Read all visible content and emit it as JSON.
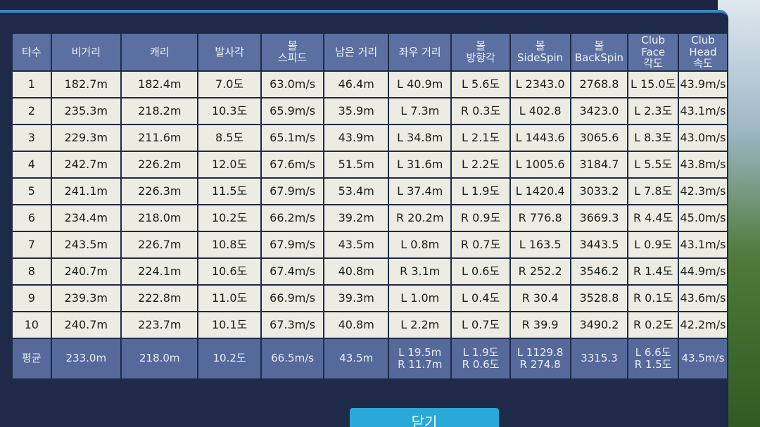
{
  "table": {
    "header": [
      "타수",
      "비거리",
      "캐리",
      "발사각",
      "볼\n스피드",
      "남은 거리",
      "좌우 거리",
      "볼\n방향각",
      "볼\nSideSpin",
      "볼\nBackSpin",
      "Club Face\n각도",
      "Club Head\n속도"
    ],
    "rows": [
      [
        "1",
        "182.7m",
        "182.4m",
        "7.0도",
        "63.0m/s",
        "46.4m",
        "L 40.9m",
        "L 5.6도",
        "L 2343.0",
        "2768.8",
        "L 15.0도",
        "43.9m/s"
      ],
      [
        "2",
        "235.3m",
        "218.2m",
        "10.3도",
        "65.9m/s",
        "35.9m",
        "L 7.3m",
        "R 0.3도",
        "L 402.8",
        "3423.0",
        "L 2.3도",
        "43.1m/s"
      ],
      [
        "3",
        "229.3m",
        "211.6m",
        "8.5도",
        "65.1m/s",
        "43.9m",
        "L 34.8m",
        "L 2.1도",
        "L 1443.6",
        "3065.6",
        "L 8.3도",
        "43.0m/s"
      ],
      [
        "4",
        "242.7m",
        "226.2m",
        "12.0도",
        "67.6m/s",
        "51.5m",
        "L 31.6m",
        "L 2.2도",
        "L 1005.6",
        "3184.7",
        "L 5.5도",
        "43.8m/s"
      ],
      [
        "5",
        "241.1m",
        "226.3m",
        "11.5도",
        "67.9m/s",
        "53.4m",
        "L 37.4m",
        "L 1.9도",
        "L 1420.4",
        "3033.2",
        "L 7.8도",
        "42.3m/s"
      ],
      [
        "6",
        "234.4m",
        "218.0m",
        "10.2도",
        "66.2m/s",
        "39.2m",
        "R 20.2m",
        "R 0.9도",
        "R 776.8",
        "3669.3",
        "R 4.4도",
        "45.0m/s"
      ],
      [
        "7",
        "243.5m",
        "226.7m",
        "10.8도",
        "67.9m/s",
        "43.5m",
        "L 0.8m",
        "R 0.7도",
        "L 163.5",
        "3443.5",
        "L 0.9도",
        "43.1m/s"
      ],
      [
        "8",
        "240.7m",
        "224.1m",
        "10.6도",
        "67.4m/s",
        "40.8m",
        "R 3.1m",
        "L 0.6도",
        "R 252.2",
        "3546.2",
        "R 1.4도",
        "44.9m/s"
      ],
      [
        "9",
        "239.3m",
        "222.8m",
        "11.0도",
        "66.9m/s",
        "39.3m",
        "L 1.0m",
        "L 0.4도",
        "R 30.4",
        "3528.8",
        "R 0.1도",
        "43.6m/s"
      ],
      [
        "10",
        "240.7m",
        "223.7m",
        "10.1도",
        "67.3m/s",
        "40.8m",
        "L 2.2m",
        "L 0.7도",
        "R 39.9",
        "3490.2",
        "R 0.2도",
        "42.2m/s"
      ]
    ],
    "average": [
      "평균",
      "233.0m",
      "218.0m",
      "10.2도",
      "66.5m/s",
      "43.5m",
      "L 19.5m\nR 11.7m",
      "L 1.9도\nR 0.6도",
      "L 1129.8\nR 274.8",
      "3315.3",
      "L 6.6도\nR 1.5도",
      "43.5m/s"
    ]
  },
  "button": "닫기"
}
